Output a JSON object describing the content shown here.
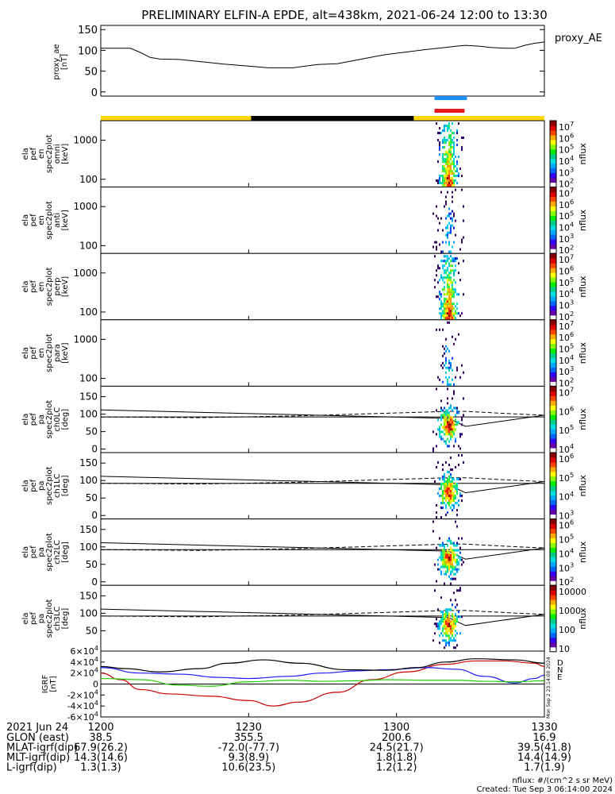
{
  "title": "PRELIMINARY ELFIN-A EPDE, alt=438km, 2021-06-24 12:00 to 13:30",
  "footer": {
    "units": "nflux: #/(cm^2 s sr MeV)",
    "created": "Created: Tue Sep  3 06:14:00 2024",
    "side_stamp": "Mon Sep  2 23:14:00 2024"
  },
  "x_axis": {
    "date_label": "2021 Jun 24",
    "ticks": [
      "1200",
      "1230",
      "1300",
      "1330"
    ],
    "tick_minutes": [
      0,
      30,
      60,
      90
    ],
    "rows": [
      {
        "label": "GLON (east)",
        "values": [
          "38.5",
          "355.5",
          "200.6",
          "16.9"
        ]
      },
      {
        "label": "MLAT-igrf(dip)",
        "values": [
          "67.9(26.2)",
          "-72.0(-77.7)",
          "24.5(21.7)",
          "39.5(41.8)"
        ]
      },
      {
        "label": "MLT-igrf(dip)",
        "values": [
          "14.3(14.6)",
          "9.3(8.9)",
          "1.8(1.8)",
          "14.4(14.9)"
        ]
      },
      {
        "label": "L-igrf(dip)",
        "values": [
          "1.3(1.3)",
          "10.6(23.5)",
          "1.2(1.2)",
          "1.7(1.9)"
        ]
      }
    ]
  },
  "colors": {
    "ae_line": "#000000",
    "bar_yellow": "#ffd700",
    "bar_black": "#000000",
    "bar_blue": "#1e90ff",
    "bar_red": "#e41a1c",
    "igrf_d": "#cc0000",
    "igrf_n": "#1a1aff",
    "igrf_e": "#22cc00",
    "igrf_total": "#000000"
  },
  "status_bars": {
    "science_zones": [
      {
        "start": 0,
        "end": 30.5,
        "color": "yellow"
      },
      {
        "start": 30.5,
        "end": 63.5,
        "color": "black"
      },
      {
        "start": 63.5,
        "end": 90,
        "color": "yellow"
      }
    ],
    "blue_bar": [
      67.7,
      74.3
    ],
    "red_bar": [
      67.7,
      73.8
    ]
  },
  "colorbar_unit": "nflux",
  "panels": [
    {
      "id": "en-omni",
      "ylabel": [
        "ela",
        "pef",
        "en",
        "spec2plot",
        "omni",
        "[keV]"
      ],
      "ytick_labels": [
        "1000",
        "100"
      ],
      "cbar_ticks": [
        "10^7",
        "10^6",
        "10^5",
        "10^4",
        "10^3",
        "10^2"
      ]
    },
    {
      "id": "en-anti",
      "ylabel": [
        "ela",
        "pef",
        "en",
        "spec2plot",
        "anti",
        "[keV]"
      ],
      "ytick_labels": [
        "1000",
        "100"
      ],
      "cbar_ticks": [
        "10^7",
        "10^6",
        "10^5",
        "10^4",
        "10^3",
        "10^2"
      ]
    },
    {
      "id": "en-perp",
      "ylabel": [
        "ela",
        "pef",
        "en",
        "spec2plot",
        "perp",
        "[keV]"
      ],
      "ytick_labels": [
        "1000",
        "100"
      ],
      "cbar_ticks": [
        "10^7",
        "10^6",
        "10^5",
        "10^4",
        "10^3",
        "10^2"
      ]
    },
    {
      "id": "en-para",
      "ylabel": [
        "ela",
        "pef",
        "en",
        "spec2plot",
        "para",
        "[keV]"
      ],
      "ytick_labels": [
        "1000",
        "100"
      ],
      "cbar_ticks": [
        "10^7",
        "10^6",
        "10^5",
        "10^4",
        "10^3",
        "10^2"
      ]
    },
    {
      "id": "pa-ch0",
      "ylabel": [
        "ela",
        "pef",
        "pa",
        "spec2plot",
        "ch0LC",
        "[deg]"
      ],
      "ytick_labels": [
        "150",
        "100",
        "50",
        "0"
      ],
      "cbar_ticks": [
        "10^7",
        "10^6",
        "10^5",
        "10^4"
      ]
    },
    {
      "id": "pa-ch1",
      "ylabel": [
        "ela",
        "pef",
        "pa",
        "spec2plot",
        "ch1LC",
        "[deg]"
      ],
      "ytick_labels": [
        "150",
        "100",
        "50",
        "0"
      ],
      "cbar_ticks": [
        "10^6",
        "10^5",
        "10^4",
        "10^3"
      ]
    },
    {
      "id": "pa-ch2",
      "ylabel": [
        "ela",
        "pef",
        "pa",
        "spec2plot",
        "ch2LC",
        "[deg]"
      ],
      "ytick_labels": [
        "150",
        "100",
        "50",
        "0"
      ],
      "cbar_ticks": [
        "10^6",
        "10^5",
        "10^4",
        "10^3",
        "10^2"
      ]
    },
    {
      "id": "pa-ch3",
      "ylabel": [
        "ela",
        "pef",
        "pa",
        "spec2plot",
        "ch3LC",
        "[deg]"
      ],
      "ytick_labels": [
        "150",
        "100",
        "50"
      ],
      "cbar_ticks": [
        "10000",
        "1000",
        "100",
        "10"
      ]
    }
  ],
  "chart_data": {
    "type": "line",
    "ae": {
      "ylabel": [
        "proxy_ae",
        "[nT]"
      ],
      "legend": "proxy_AE",
      "ylim": [
        0,
        150
      ],
      "ytick_labels": [
        "150",
        "100",
        "50",
        "0"
      ],
      "points": [
        [
          0,
          105
        ],
        [
          3,
          105
        ],
        [
          6,
          105
        ],
        [
          8,
          95
        ],
        [
          10,
          83
        ],
        [
          12,
          79
        ],
        [
          16,
          78
        ],
        [
          20,
          73
        ],
        [
          25,
          67
        ],
        [
          30,
          62
        ],
        [
          34,
          58
        ],
        [
          39,
          58
        ],
        [
          44,
          66
        ],
        [
          48,
          68
        ],
        [
          52,
          77
        ],
        [
          56,
          86
        ],
        [
          58,
          90
        ],
        [
          62,
          96
        ],
        [
          66,
          102
        ],
        [
          70,
          107
        ],
        [
          72,
          110
        ],
        [
          74,
          112
        ],
        [
          77,
          110
        ],
        [
          79,
          107
        ],
        [
          82,
          105
        ],
        [
          84,
          105
        ],
        [
          86,
          112
        ],
        [
          88,
          117
        ],
        [
          90,
          120
        ]
      ]
    },
    "spectrograms": {
      "energy_axis_ticks_keV": [
        100,
        1000
      ],
      "pitch_axis_ticks_deg": [
        0,
        50,
        100,
        150
      ],
      "active_interval_minutes": [
        67.5,
        73.5
      ]
    },
    "loss_cone_lines": {
      "solid": [
        [
          0,
          112
        ],
        [
          70.5,
          88
        ],
        [
          74,
          65
        ],
        [
          90,
          97
        ]
      ],
      "dashed": [
        [
          0,
          92
        ],
        [
          20,
          90
        ],
        [
          40,
          95
        ],
        [
          70.5,
          108
        ],
        [
          74,
          108
        ],
        [
          85,
          100
        ],
        [
          90,
          97
        ]
      ],
      "flat": [
        [
          0,
          92
        ],
        [
          90,
          92
        ]
      ]
    },
    "igrf": {
      "ylabel": [
        "IGRF",
        "[nT]"
      ],
      "ylim": [
        -60000,
        60000
      ],
      "ytick_labels": [
        "6×10^4",
        "4×10^4",
        "2×10^4",
        "0",
        "-2×10^4",
        "-4×10^4",
        "-6×10^4"
      ],
      "components": [
        {
          "name": "D",
          "color": "red",
          "points": [
            [
              0,
              20000
            ],
            [
              4,
              8000
            ],
            [
              8,
              -10000
            ],
            [
              14,
              -18000
            ],
            [
              22,
              -22000
            ],
            [
              30,
              -30000
            ],
            [
              35,
              -40000
            ],
            [
              40,
              -33000
            ],
            [
              48,
              -15000
            ],
            [
              55,
              8000
            ],
            [
              62,
              22000
            ],
            [
              70,
              36000
            ],
            [
              76,
              42000
            ],
            [
              82,
              42000
            ],
            [
              88,
              38000
            ],
            [
              90,
              32000
            ]
          ]
        },
        {
          "name": "N",
          "color": "blue",
          "points": [
            [
              0,
              30000
            ],
            [
              8,
              20000
            ],
            [
              16,
              18000
            ],
            [
              24,
              12000
            ],
            [
              30,
              10000
            ],
            [
              38,
              14000
            ],
            [
              45,
              20000
            ],
            [
              52,
              24000
            ],
            [
              58,
              26000
            ],
            [
              66,
              30000
            ],
            [
              72,
              27000
            ],
            [
              78,
              14000
            ],
            [
              84,
              2000
            ],
            [
              88,
              10000
            ],
            [
              90,
              16000
            ]
          ]
        },
        {
          "name": "E",
          "color": "green",
          "points": [
            [
              0,
              10000
            ],
            [
              8,
              8000
            ],
            [
              16,
              -2000
            ],
            [
              22,
              -4000
            ],
            [
              30,
              4000
            ],
            [
              38,
              7000
            ],
            [
              45,
              5000
            ],
            [
              52,
              6000
            ],
            [
              58,
              8000
            ],
            [
              66,
              7000
            ],
            [
              72,
              7000
            ],
            [
              78,
              5000
            ],
            [
              84,
              4000
            ],
            [
              90,
              6000
            ]
          ]
        },
        {
          "name": "total",
          "color": "black",
          "points": [
            [
              0,
              32000
            ],
            [
              5,
              28000
            ],
            [
              12,
              22000
            ],
            [
              20,
              28000
            ],
            [
              26,
              38000
            ],
            [
              33,
              44000
            ],
            [
              40,
              38000
            ],
            [
              50,
              26000
            ],
            [
              58,
              25000
            ],
            [
              64,
              30000
            ],
            [
              70,
              40000
            ],
            [
              76,
              46000
            ],
            [
              84,
              44000
            ],
            [
              90,
              38000
            ]
          ]
        }
      ]
    }
  }
}
